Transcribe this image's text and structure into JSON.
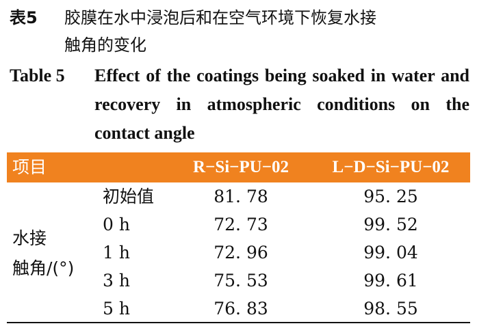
{
  "caption_cn": {
    "label": "表5",
    "line1": "胶膜在水中浸泡后和在空气环境下恢复水接",
    "line2": "触角的变化"
  },
  "caption_en": {
    "label": "Table 5",
    "text": "Effect of the coatings being soaked in water and recovery in atmospheric conditions on the contact angle"
  },
  "table": {
    "headers": [
      "项目",
      "R−Si−PU−02",
      "L−D−Si−PU−02"
    ],
    "group_label_line1": "水接",
    "group_label_line2": "触角/(°)",
    "rows": [
      {
        "label": "初始值",
        "v1": "81. 78",
        "v2": "95. 25"
      },
      {
        "label": "0 h",
        "v1": "72. 73",
        "v2": "99. 52"
      },
      {
        "label": "1 h",
        "v1": "72. 96",
        "v2": "99. 04"
      },
      {
        "label": "3 h",
        "v1": "75. 53",
        "v2": "99. 61"
      },
      {
        "label": "5 h",
        "v1": "76. 83",
        "v2": "98. 55"
      }
    ],
    "header_color": "#f0821f"
  }
}
